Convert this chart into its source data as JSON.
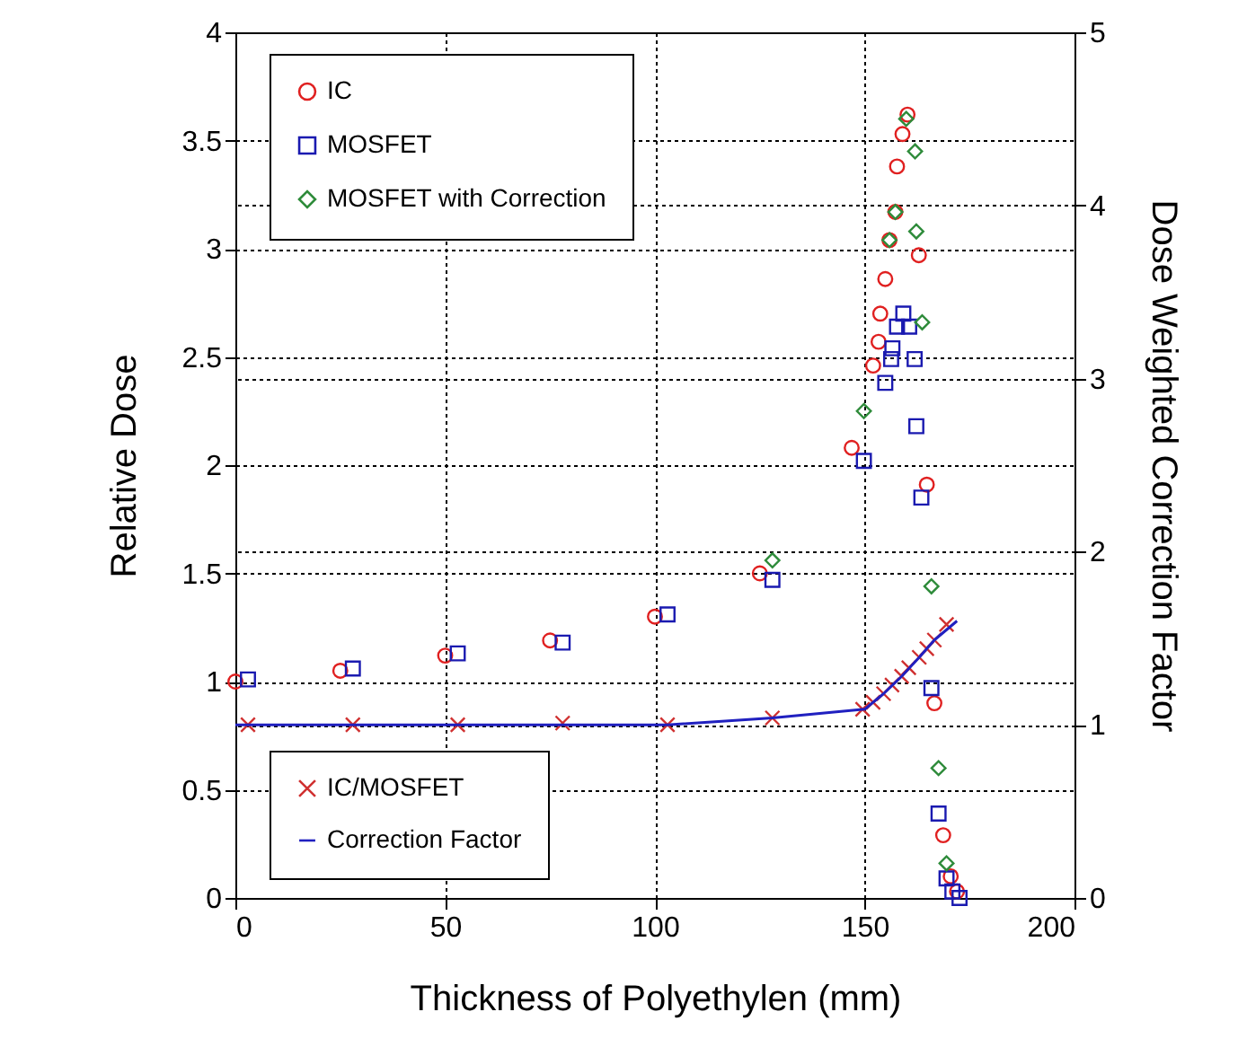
{
  "chart_data": {
    "type": "scatter",
    "xlabel": "Thickness of Polyethylen (mm)",
    "ylabel": "Relative Dose",
    "y2label": "Dose Weighted Correction Factor",
    "xlim": [
      0,
      200
    ],
    "xticks": [
      0,
      50,
      100,
      150,
      200
    ],
    "ylim": [
      0,
      4
    ],
    "yticks": [
      0,
      0.5,
      1,
      1.5,
      2,
      2.5,
      3,
      3.5,
      4
    ],
    "y2lim": [
      0,
      5
    ],
    "y2ticks": [
      0,
      1,
      2,
      3,
      4,
      5
    ],
    "grid": true,
    "legend": "top left",
    "series": [
      {
        "name": "IC",
        "color": "#e02020",
        "marker": "circle",
        "x": [
          0,
          25,
          50,
          75,
          100,
          125,
          146.9,
          152.0,
          153.3,
          153.7,
          154.9,
          155.9,
          157.3,
          157.7,
          159.0,
          160.2,
          162.9,
          164.8,
          166.6,
          168.7,
          170.5,
          172.0
        ],
        "values": [
          1.0,
          1.05,
          1.12,
          1.19,
          1.3,
          1.5,
          2.08,
          2.46,
          2.57,
          2.7,
          2.86,
          3.04,
          3.17,
          3.38,
          3.53,
          3.62,
          2.97,
          1.91,
          0.9,
          0.29,
          0.1,
          0.03
        ]
      },
      {
        "name": "MOSFET",
        "color": "#1a1ab0",
        "marker": "square",
        "x": [
          3,
          28,
          53,
          78,
          103,
          128,
          149.8,
          154.9,
          156.3,
          156.6,
          157.7,
          159.2,
          160.6,
          161.9,
          162.3,
          163.5,
          165.9,
          167.6,
          169.5,
          170.9,
          172.6
        ],
        "values": [
          1.01,
          1.06,
          1.13,
          1.18,
          1.31,
          1.47,
          2.02,
          2.38,
          2.49,
          2.54,
          2.64,
          2.7,
          2.64,
          2.49,
          2.18,
          1.85,
          0.97,
          0.39,
          0.09,
          0.03,
          0
        ]
      },
      {
        "name": "MOSFET with Correction",
        "color": "#2e8b3a",
        "marker": "diamond",
        "x": [
          128,
          149.8,
          155.9,
          157.3,
          159.9,
          162.0,
          162.3,
          163.7,
          165.9,
          167.6,
          169.5
        ],
        "values": [
          1.56,
          2.25,
          3.04,
          3.17,
          3.6,
          3.45,
          3.08,
          2.66,
          1.44,
          0.6,
          0.16
        ]
      },
      {
        "name": "IC/MOSFET",
        "color": "#d03030",
        "marker": "cross",
        "axis": "y2",
        "x": [
          3,
          28,
          53,
          78,
          103,
          128,
          149.5,
          152,
          154.5,
          156.5,
          158.8,
          160.5,
          163.0,
          164.8,
          166.6,
          169.5
        ],
        "values": [
          1.0,
          1.0,
          1.0,
          1.01,
          1.0,
          1.04,
          1.09,
          1.13,
          1.18,
          1.23,
          1.28,
          1.33,
          1.39,
          1.44,
          1.49,
          1.58
        ]
      },
      {
        "name": "Correction Factor",
        "color": "#2020c0",
        "type": "line",
        "line_style": "solid",
        "marker": "none",
        "axis": "y2",
        "x": [
          0,
          103,
          128,
          150,
          154.5,
          158.8,
          163.0,
          166.6,
          172
        ],
        "values": [
          1.0,
          1.0,
          1.04,
          1.09,
          1.18,
          1.28,
          1.39,
          1.49,
          1.6
        ]
      }
    ]
  }
}
